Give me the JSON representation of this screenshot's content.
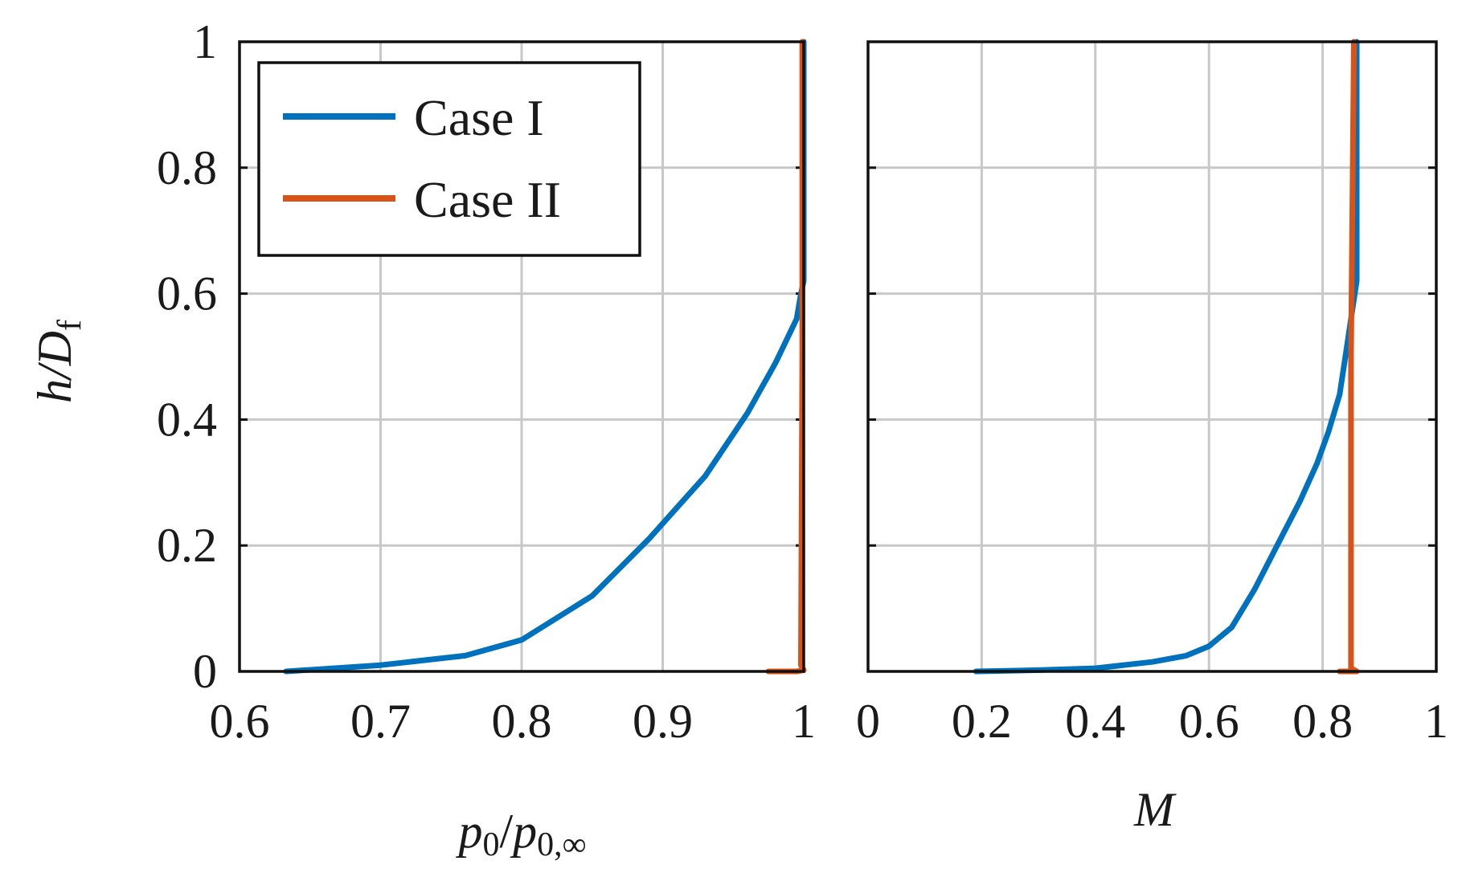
{
  "chart_data": [
    {
      "type": "line",
      "xlabel_main": "p",
      "xlabel_sub": "0",
      "xlabel_den_main": "p",
      "xlabel_den_sub": "0,∞",
      "ylabel_main": "h/D",
      "ylabel_sub": "f",
      "xlim": [
        0.6,
        1.0
      ],
      "ylim": [
        0,
        1
      ],
      "xticks": [
        "0.6",
        "0.7",
        "0.8",
        "0.9",
        "1"
      ],
      "xtick_values": [
        0.6,
        0.7,
        0.8,
        0.9,
        1.0
      ],
      "yticks": [
        "0",
        "0.2",
        "0.4",
        "0.6",
        "0.8",
        "1"
      ],
      "ytick_values": [
        0,
        0.2,
        0.4,
        0.6,
        0.8,
        1.0
      ],
      "grid": true,
      "legend": "top-left",
      "series": [
        {
          "name": "Case I",
          "color": "#0072bd",
          "x": [
            0.633,
            0.7,
            0.76,
            0.8,
            0.85,
            0.89,
            0.93,
            0.96,
            0.98,
            0.995,
            0.998,
            1.0,
            1.0
          ],
          "y": [
            0.0,
            0.01,
            0.025,
            0.05,
            0.12,
            0.21,
            0.31,
            0.41,
            0.49,
            0.56,
            0.6,
            0.62,
            1.0
          ]
        },
        {
          "name": "Case II",
          "color": "#d95319",
          "x": [
            0.975,
            0.995,
            1.0,
            0.998,
            0.999,
            0.999
          ],
          "y": [
            0.0,
            0.0,
            0.002,
            0.01,
            0.5,
            1.0
          ]
        }
      ]
    },
    {
      "type": "line",
      "xlabel": "M",
      "xlim": [
        0,
        1
      ],
      "ylim": [
        0,
        1
      ],
      "xticks": [
        "0",
        "0.2",
        "0.4",
        "0.6",
        "0.8",
        "1"
      ],
      "xtick_values": [
        0,
        0.2,
        0.4,
        0.6,
        0.8,
        1.0
      ],
      "grid": true,
      "series": [
        {
          "name": "Case I",
          "color": "#0072bd",
          "x": [
            0.19,
            0.3,
            0.4,
            0.5,
            0.56,
            0.6,
            0.64,
            0.68,
            0.72,
            0.76,
            0.79,
            0.81,
            0.83,
            0.84,
            0.85,
            0.86,
            0.86
          ],
          "y": [
            0.0,
            0.002,
            0.005,
            0.015,
            0.025,
            0.04,
            0.07,
            0.13,
            0.2,
            0.27,
            0.33,
            0.38,
            0.44,
            0.5,
            0.56,
            0.62,
            1.0
          ]
        },
        {
          "name": "Case II",
          "color": "#d95319",
          "x": [
            0.83,
            0.86,
            0.85,
            0.85,
            0.855
          ],
          "y": [
            0.0,
            0.0,
            0.005,
            0.5,
            1.0
          ]
        }
      ]
    }
  ]
}
